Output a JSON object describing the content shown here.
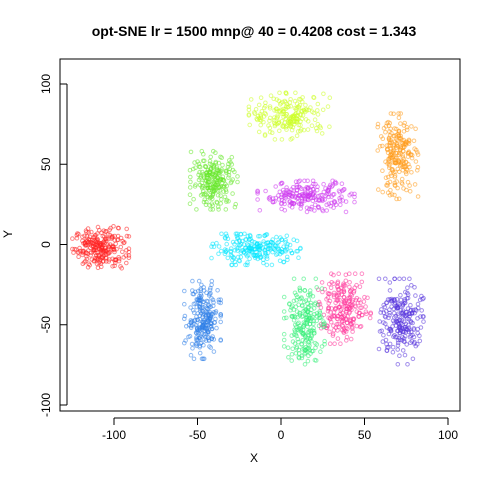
{
  "chart_data": {
    "type": "scatter",
    "title": "opt-SNE lr = 1500 mnp@ 40 = 0.4208 cost = 1.343",
    "xlabel": "X",
    "ylabel": "Y",
    "xlim": [
      -128,
      100
    ],
    "ylim": [
      -100,
      108
    ],
    "x_ticks": [
      -100,
      -50,
      0,
      50,
      100
    ],
    "y_ticks": [
      -100,
      -50,
      0,
      50,
      100
    ],
    "x_tick_labels": [
      "-100",
      "-50",
      "0",
      "50",
      "100"
    ],
    "y_tick_labels": [
      "-100",
      "-50",
      "0",
      "50",
      "100"
    ],
    "grid": false,
    "legend": "none",
    "marker": "open-circle",
    "point_opacity": 0.55,
    "series": [
      {
        "color": "#ff2020",
        "center": [
          -108,
          -2
        ],
        "spread": [
          14,
          11
        ],
        "n": 240
      },
      {
        "color": "#2f7fe8",
        "center": [
          -47,
          -47
        ],
        "spread": [
          9,
          20
        ],
        "n": 230
      },
      {
        "color": "#00e5ff",
        "center": [
          -15,
          -3
        ],
        "spread": [
          22,
          8
        ],
        "n": 220
      },
      {
        "color": "#66e82a",
        "center": [
          -40,
          40
        ],
        "spread": [
          12,
          15
        ],
        "n": 220
      },
      {
        "color": "#ccff22",
        "center": [
          5,
          80
        ],
        "spread": [
          20,
          12
        ],
        "n": 200
      },
      {
        "color": "#cc33ee",
        "center": [
          15,
          30
        ],
        "spread": [
          24,
          8
        ],
        "n": 210
      },
      {
        "color": "#ff9a1a",
        "center": [
          70,
          55
        ],
        "spread": [
          10,
          22
        ],
        "n": 220
      },
      {
        "color": "#ff3399",
        "center": [
          38,
          -40
        ],
        "spread": [
          13,
          18
        ],
        "n": 220
      },
      {
        "color": "#33ee77",
        "center": [
          14,
          -48
        ],
        "spread": [
          10,
          22
        ],
        "n": 210
      },
      {
        "color": "#5533dd",
        "center": [
          72,
          -48
        ],
        "spread": [
          11,
          22
        ],
        "n": 220
      }
    ]
  }
}
